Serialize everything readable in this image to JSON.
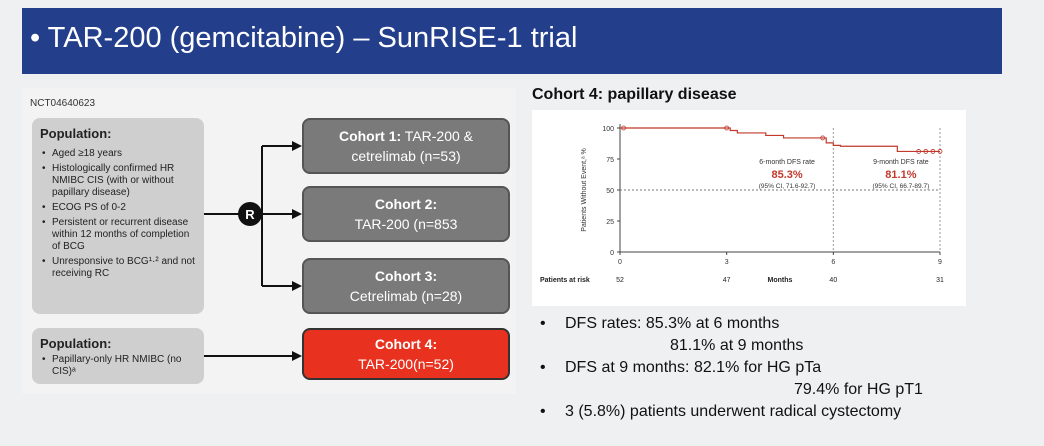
{
  "title": "• TAR-200 (gemcitabine) – SunRISE-1 trial",
  "nct": "NCT04640623",
  "population1": {
    "title": "Population:",
    "items": [
      "Aged ≥18 years",
      "Histologically confirmed HR NMIBC CIS (with or without papillary disease)",
      "ECOG PS of 0-2",
      "Persistent or recurrent disease within 12 months of completion of BCG",
      "Unresponsive to BCG¹·² and not receiving RC"
    ]
  },
  "population2": {
    "title": "Population:",
    "items": [
      "Papillary-only HR NMIBC (no CIS)ᵃ"
    ]
  },
  "randomization_label": "R",
  "cohorts": [
    {
      "bold": "Cohort 1:",
      "text": " TAR-200 &",
      "line2": "cetrelimab (n=53)"
    },
    {
      "bold": "Cohort 2:",
      "text": "",
      "line2": "TAR-200 (n=853"
    },
    {
      "bold": "Cohort 3:",
      "text": "",
      "line2": "Cetrelimab (n=28)"
    },
    {
      "bold": "Cohort 4:",
      "text": "",
      "line2": "TAR-200(n=52)"
    }
  ],
  "right_title": "Cohort 4: papillary disease",
  "chart_data": {
    "type": "line",
    "ylabel": "Patients Without Event,ᵃ %",
    "xlabel": "Months",
    "x_ticks": [
      "0",
      "3",
      "6",
      "9"
    ],
    "y_ticks": [
      "100",
      "75",
      "50",
      "25",
      "0"
    ],
    "xlim": [
      0,
      9
    ],
    "ylim": [
      0,
      100
    ],
    "series": [
      {
        "x": [
          0,
          1.8,
          2.9,
          3.1,
          3.3,
          3.6,
          4.1,
          4.6,
          5.6,
          5.8,
          6.0,
          6.2,
          7.2,
          7.8,
          9.0
        ],
        "y": [
          100,
          100,
          100,
          98,
          96,
          96,
          94,
          92,
          92,
          88,
          86,
          85.3,
          85.3,
          81.1,
          81.1
        ]
      }
    ],
    "reference_line_y": 50,
    "risk_label": "Patients at risk",
    "at_risk": [
      "52",
      "47",
      "40",
      "31"
    ],
    "annotations": [
      {
        "label": "6-month DFS rate",
        "value": "85.3%",
        "ci": "(95% CI, 71.6-92.7)"
      },
      {
        "label": "9-month DFS rate",
        "value": "81.1%",
        "ci": "(95% CI, 66.7-89.7)"
      }
    ],
    "line_color": "#c0392b"
  },
  "bullets": [
    {
      "bullet": "•",
      "text": "DFS rates:  85.3% at 6 months"
    },
    {
      "bullet": "",
      "text": "81.1% at 9 months"
    },
    {
      "bullet": "•",
      "text": "DFS at 9 months: 82.1% for HG pTa"
    },
    {
      "bullet": "",
      "text": "79.4% for HG pT1"
    },
    {
      "bullet": "•",
      "text": "3 (5.8%) patients underwent radical cystectomy"
    }
  ]
}
